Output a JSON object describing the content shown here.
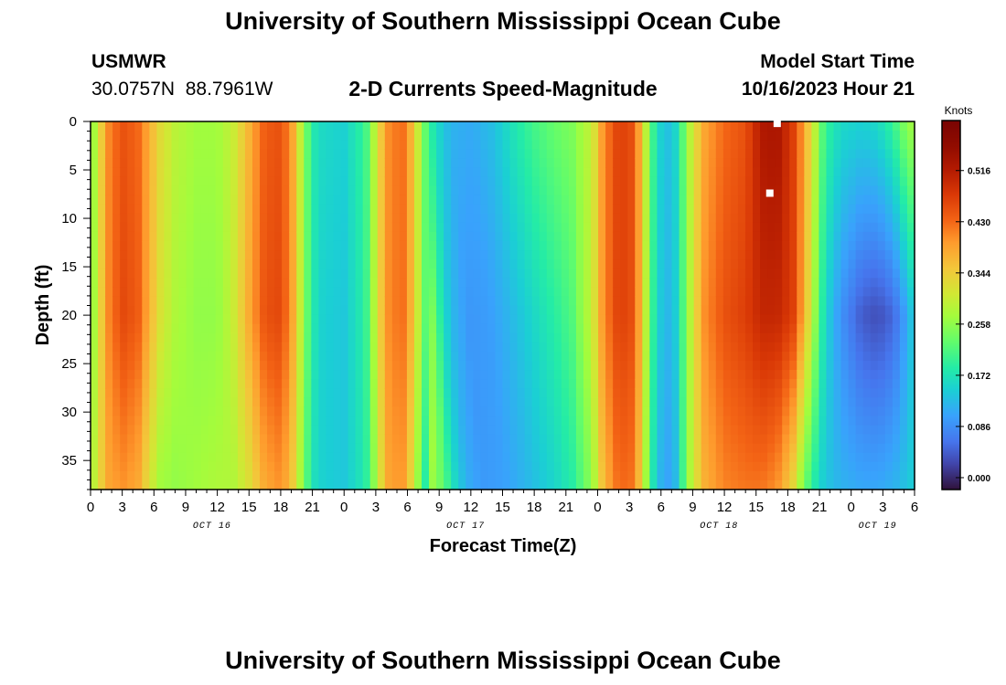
{
  "header": {
    "title": "University of Southern Mississippi Ocean Cube",
    "station_id": "USMWR",
    "station_coords": "30.0757N  88.7961W",
    "subtitle": "2-D Currents Speed-Magnitude",
    "model_start_label": "Model Start Time",
    "model_start_value": "10/16/2023 Hour 21"
  },
  "footer": {
    "title": "University of Southern Mississippi Ocean Cube"
  },
  "chart_data": {
    "type": "heatmap",
    "title": "2-D Currents Speed-Magnitude",
    "xlabel": "Forecast Time(Z)",
    "ylabel": "Depth (ft)",
    "ylim": [
      0,
      38
    ],
    "y_reversed": true,
    "y_ticks": [
      0,
      5,
      10,
      15,
      20,
      25,
      30,
      35
    ],
    "x_range_hours": [
      0,
      78
    ],
    "x_ticks": [
      {
        "hour": 0,
        "label": "0"
      },
      {
        "hour": 3,
        "label": "3"
      },
      {
        "hour": 6,
        "label": "6"
      },
      {
        "hour": 9,
        "label": "9"
      },
      {
        "hour": 12,
        "label": "12"
      },
      {
        "hour": 15,
        "label": "15"
      },
      {
        "hour": 18,
        "label": "18"
      },
      {
        "hour": 21,
        "label": "21"
      },
      {
        "hour": 24,
        "label": "0"
      },
      {
        "hour": 27,
        "label": "3"
      },
      {
        "hour": 30,
        "label": "6"
      },
      {
        "hour": 33,
        "label": "9"
      },
      {
        "hour": 36,
        "label": "12"
      },
      {
        "hour": 39,
        "label": "15"
      },
      {
        "hour": 42,
        "label": "18"
      },
      {
        "hour": 45,
        "label": "21"
      },
      {
        "hour": 48,
        "label": "0"
      },
      {
        "hour": 51,
        "label": "3"
      },
      {
        "hour": 54,
        "label": "6"
      },
      {
        "hour": 57,
        "label": "9"
      },
      {
        "hour": 60,
        "label": "12"
      },
      {
        "hour": 63,
        "label": "15"
      },
      {
        "hour": 66,
        "label": "18"
      },
      {
        "hour": 69,
        "label": "21"
      },
      {
        "hour": 72,
        "label": "0"
      },
      {
        "hour": 75,
        "label": "3"
      },
      {
        "hour": 78,
        "label": "6"
      }
    ],
    "date_labels": [
      {
        "hour": 11.5,
        "label": "OCT 16"
      },
      {
        "hour": 35.5,
        "label": "OCT 17"
      },
      {
        "hour": 59.5,
        "label": "OCT 18"
      },
      {
        "hour": 74.5,
        "label": "OCT 19"
      }
    ],
    "colorbar": {
      "units": "Knots",
      "range": [
        -0.02,
        0.6
      ],
      "ticks": [
        0.0,
        0.086,
        0.172,
        0.258,
        0.344,
        0.43,
        0.516
      ],
      "tick_labels": [
        "0.000",
        "0.086",
        "0.172",
        "0.258",
        "0.344",
        "0.430",
        "0.516"
      ]
    },
    "speed_profile_by_hour": {
      "hours": [
        0,
        0.5,
        1.5,
        3,
        4.5,
        5.5,
        6.5,
        8,
        10,
        12,
        13.5,
        15,
        16.5,
        18,
        19,
        20,
        21,
        22,
        24,
        26,
        27,
        28,
        29.5,
        30.5,
        31.5,
        32.5,
        34,
        36,
        38,
        40,
        42,
        44,
        46,
        47.5,
        48.5,
        50,
        51.5,
        52.5,
        53.5,
        54.5,
        55.5,
        56.5,
        58,
        60,
        62,
        63.5,
        65,
        66.5,
        67.5,
        68.5,
        69.5,
        71,
        73,
        74.5,
        76,
        77.5,
        78
      ],
      "surface": [
        0.26,
        0.28,
        0.4,
        0.45,
        0.43,
        0.38,
        0.33,
        0.29,
        0.27,
        0.27,
        0.3,
        0.37,
        0.44,
        0.45,
        0.4,
        0.28,
        0.18,
        0.16,
        0.15,
        0.2,
        0.3,
        0.4,
        0.43,
        0.36,
        0.24,
        0.18,
        0.14,
        0.13,
        0.15,
        0.2,
        0.24,
        0.26,
        0.26,
        0.3,
        0.4,
        0.47,
        0.45,
        0.3,
        0.17,
        0.13,
        0.16,
        0.27,
        0.38,
        0.43,
        0.45,
        0.52,
        0.53,
        0.47,
        0.39,
        0.3,
        0.2,
        0.16,
        0.15,
        0.16,
        0.2,
        0.27,
        0.26
      ],
      "mid": [
        0.26,
        0.28,
        0.4,
        0.46,
        0.44,
        0.38,
        0.32,
        0.28,
        0.26,
        0.26,
        0.3,
        0.38,
        0.45,
        0.46,
        0.4,
        0.28,
        0.18,
        0.15,
        0.14,
        0.19,
        0.3,
        0.4,
        0.43,
        0.36,
        0.24,
        0.16,
        0.1,
        0.09,
        0.11,
        0.14,
        0.17,
        0.2,
        0.24,
        0.3,
        0.4,
        0.47,
        0.45,
        0.3,
        0.16,
        0.12,
        0.15,
        0.26,
        0.4,
        0.45,
        0.47,
        0.5,
        0.5,
        0.47,
        0.38,
        0.27,
        0.16,
        0.09,
        0.04,
        0.03,
        0.05,
        0.12,
        0.16
      ],
      "bottom": [
        0.28,
        0.3,
        0.38,
        0.4,
        0.38,
        0.32,
        0.27,
        0.26,
        0.27,
        0.28,
        0.28,
        0.32,
        0.38,
        0.4,
        0.36,
        0.26,
        0.17,
        0.15,
        0.14,
        0.18,
        0.27,
        0.38,
        0.4,
        0.32,
        0.2,
        0.12,
        0.08,
        0.08,
        0.1,
        0.12,
        0.14,
        0.16,
        0.2,
        0.26,
        0.36,
        0.43,
        0.42,
        0.28,
        0.14,
        0.1,
        0.13,
        0.26,
        0.37,
        0.41,
        0.42,
        0.42,
        0.4,
        0.33,
        0.24,
        0.18,
        0.14,
        0.12,
        0.11,
        0.11,
        0.12,
        0.14,
        0.15
      ]
    },
    "markers": [
      {
        "hour": 64.3,
        "depth_ft": 7.4
      },
      {
        "hour": 65.0,
        "depth_ft": 0.2
      }
    ]
  }
}
